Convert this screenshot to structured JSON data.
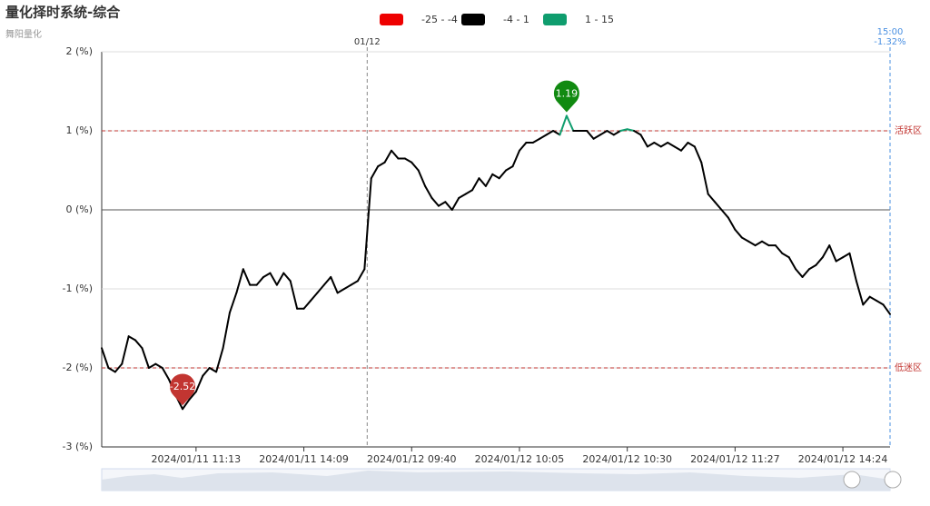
{
  "chart_data": {
    "type": "line",
    "title": "量化择时系统-综合",
    "subtitle": "舞阳量化",
    "pieces": [
      {
        "label": "-25 - -4",
        "color": "#ee0000",
        "min": -25,
        "max": -4
      },
      {
        "label": "-4 - 1",
        "color": "#000000",
        "min": -4,
        "max": 1
      },
      {
        "label": "1 - 15",
        "color": "#0f9d6e",
        "min": 1,
        "max": 15
      }
    ],
    "categories": [
      null,
      null,
      null,
      null,
      null,
      null,
      null,
      null,
      null,
      null,
      null,
      null,
      null,
      null,
      "2024/01/11 11:13",
      null,
      null,
      null,
      null,
      null,
      null,
      null,
      null,
      null,
      null,
      null,
      null,
      null,
      null,
      null,
      "2024/01/11 14:09",
      null,
      null,
      null,
      null,
      null,
      null,
      null,
      null,
      null,
      null,
      null,
      null,
      null,
      null,
      null,
      "2024/01/12 09:40",
      null,
      null,
      null,
      null,
      null,
      null,
      null,
      null,
      null,
      null,
      null,
      null,
      null,
      null,
      null,
      "2024/01/12 10:05",
      null,
      null,
      null,
      null,
      null,
      null,
      null,
      null,
      null,
      null,
      null,
      null,
      null,
      null,
      null,
      "2024/01/12 10:30",
      null,
      null,
      null,
      null,
      null,
      null,
      null,
      null,
      null,
      null,
      null,
      null,
      null,
      null,
      null,
      "2024/01/12 11:27",
      null,
      null,
      null,
      null,
      null,
      null,
      null,
      null,
      null,
      null,
      null,
      null,
      null,
      null,
      null,
      "2024/01/12 14:24",
      null,
      null,
      null,
      null,
      null,
      null,
      null
    ],
    "series": [
      {
        "name": "综合",
        "values": [
          -1.75,
          -2.0,
          -2.05,
          -1.95,
          -1.6,
          -1.65,
          -1.75,
          -2.0,
          -1.95,
          -2.0,
          -2.15,
          -2.35,
          -2.52,
          -2.4,
          -2.3,
          -2.1,
          -2.0,
          -2.05,
          -1.75,
          -1.3,
          -1.05,
          -0.75,
          -0.95,
          -0.95,
          -0.85,
          -0.8,
          -0.95,
          -0.8,
          -0.9,
          -1.25,
          -1.25,
          -1.15,
          -1.05,
          -0.95,
          -0.85,
          -1.05,
          -1.0,
          -0.95,
          -0.9,
          -0.75,
          0.4,
          0.55,
          0.6,
          0.75,
          0.65,
          0.65,
          0.6,
          0.5,
          0.3,
          0.15,
          0.05,
          0.1,
          0.0,
          0.15,
          0.2,
          0.25,
          0.4,
          0.3,
          0.45,
          0.4,
          0.5,
          0.55,
          0.75,
          0.85,
          0.85,
          0.9,
          0.95,
          1.0,
          0.95,
          1.19,
          1.0,
          1.0,
          1.0,
          0.9,
          0.95,
          1.0,
          0.95,
          1.0,
          1.02,
          1.0,
          0.95,
          0.8,
          0.85,
          0.8,
          0.85,
          0.8,
          0.75,
          0.85,
          0.8,
          0.6,
          0.2,
          0.1,
          0.0,
          -0.1,
          -0.25,
          -0.35,
          -0.4,
          -0.45,
          -0.4,
          -0.45,
          -0.45,
          -0.55,
          -0.6,
          -0.75,
          -0.85,
          -0.75,
          -0.7,
          -0.6,
          -0.45,
          -0.65,
          -0.6,
          -0.55,
          -0.9,
          -1.2,
          -1.1,
          -1.15,
          -1.2,
          -1.32
        ]
      }
    ],
    "ylim": [
      -3,
      2
    ],
    "yticks": [
      {
        "value": -3,
        "label": "-3 (%)"
      },
      {
        "value": -2,
        "label": "-2 (%)"
      },
      {
        "value": -1,
        "label": "-1 (%)"
      },
      {
        "value": 0,
        "label": "0 (%)"
      },
      {
        "value": 1,
        "label": "1 (%)"
      },
      {
        "value": 2,
        "label": "2 (%)"
      }
    ],
    "grid": true,
    "zones": [
      {
        "value": 1,
        "label": "活跃区"
      },
      {
        "value": -2,
        "label": "低迷区"
      }
    ],
    "date_divider": "01/12",
    "end_marker": {
      "time": "15:00",
      "label": "-1.32%"
    }
  }
}
